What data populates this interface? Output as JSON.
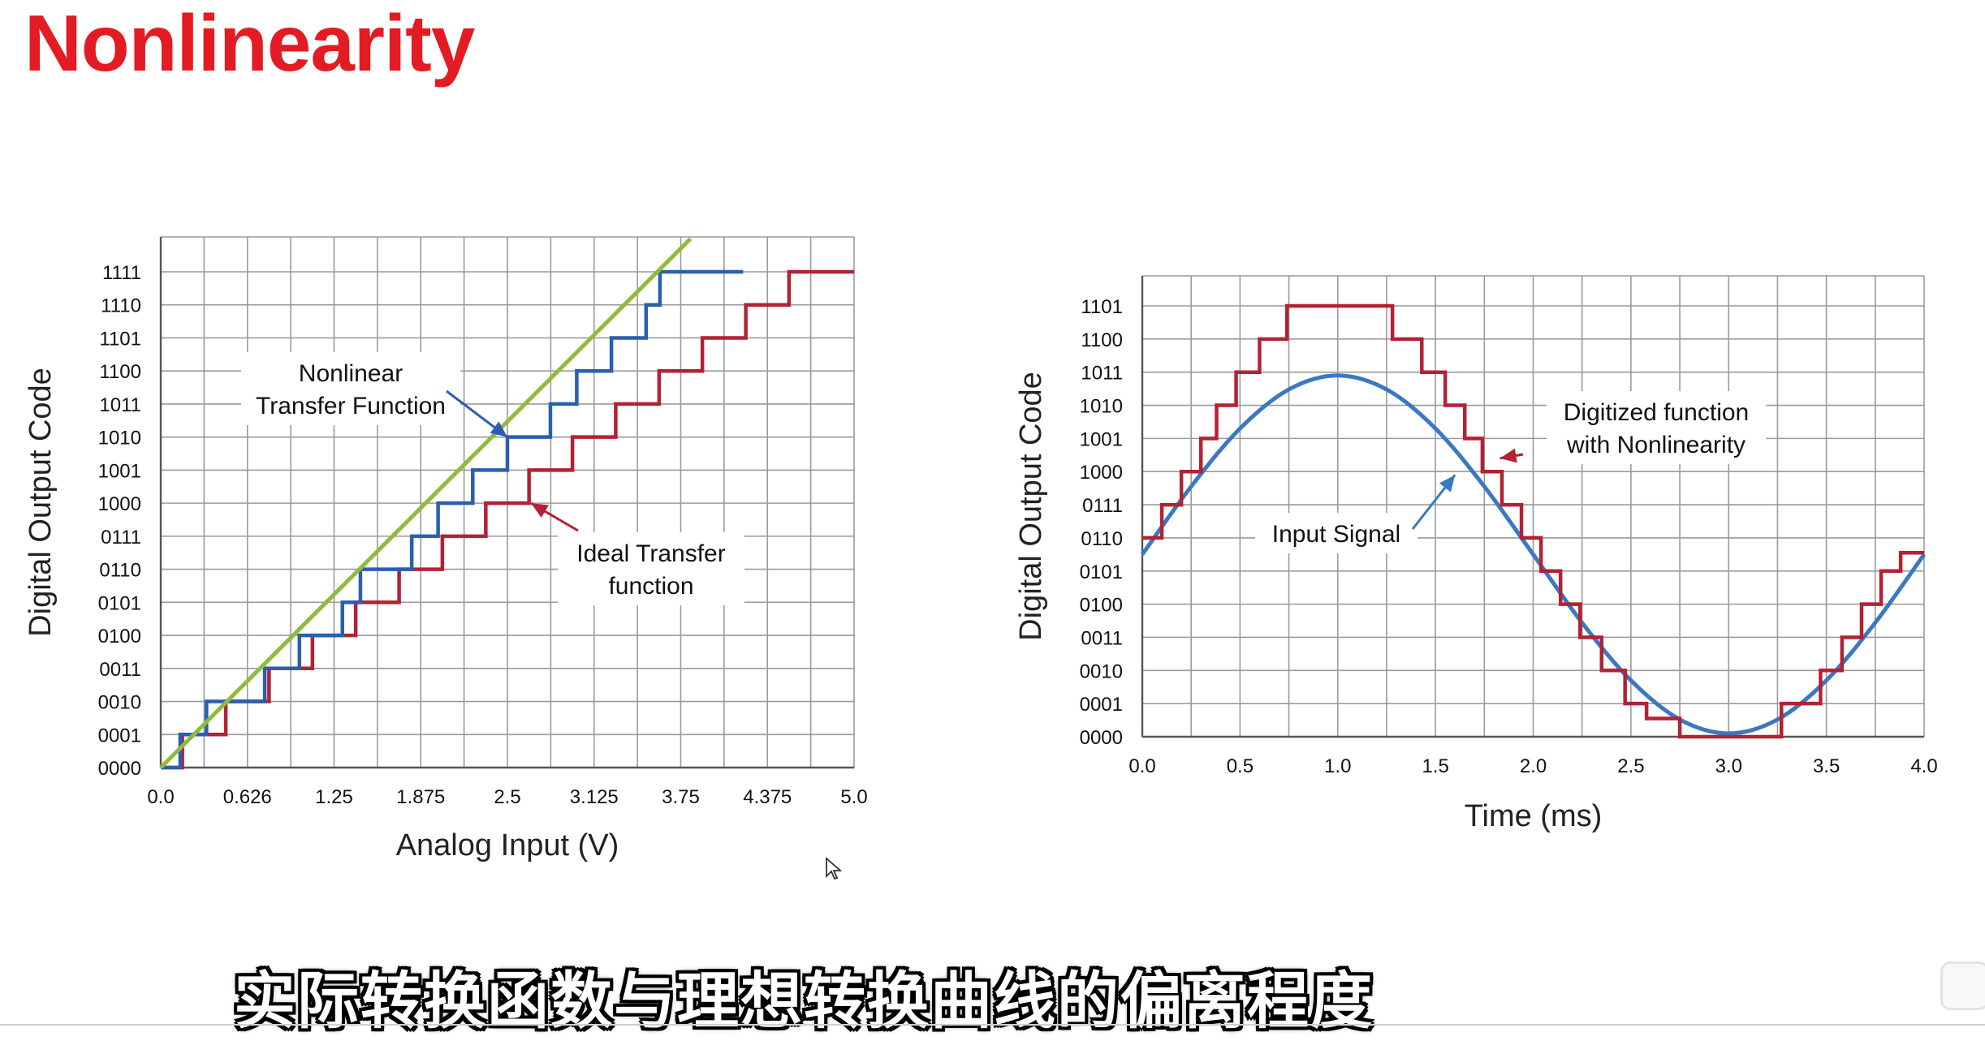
{
  "slide": {
    "title": "Nonlinearity",
    "subtitle": "实际转换函数与理想转换曲线的偏离程度"
  },
  "icons": {
    "cursor": "mouse-pointer-icon",
    "player": "video-player-control-icon"
  },
  "colors": {
    "title": "#e31b23",
    "ideal": "#b22234",
    "nonlinear": "#2b5fae",
    "reference": "#8fbc3a",
    "input_signal": "#3a78c2",
    "digitized": "#b22234",
    "grid": "#9a9a9a"
  },
  "chart_data": [
    {
      "type": "line",
      "xlabel": "Analog Input (V)",
      "ylabel": "Digital Output Code",
      "xlim": [
        0,
        5
      ],
      "ylim": [
        0,
        15
      ],
      "x_ticks": [
        "0.0",
        "0.626",
        "1.25",
        "1.875",
        "2.5",
        "3.125",
        "3.75",
        "4.375",
        "5.0"
      ],
      "y_ticks": [
        "0000",
        "0001",
        "0010",
        "0011",
        "0100",
        "0101",
        "0110",
        "0111",
        "1000",
        "1001",
        "1010",
        "1011",
        "1100",
        "1101",
        "1110",
        "1111"
      ],
      "grid": true,
      "annotations": [
        {
          "text": [
            "Nonlinear",
            "Transfer Function"
          ],
          "points_to": [
            2.5,
            10
          ]
        },
        {
          "text": [
            "Ideal Transfer",
            "function"
          ],
          "points_to": [
            2.67,
            8
          ]
        }
      ],
      "series": [
        {
          "style": "step",
          "color": "#b22234",
          "steps": [
            {
              "x0": 0.0,
              "x1": 0.156,
              "y": 0
            },
            {
              "x0": 0.156,
              "x1": 0.469,
              "y": 1
            },
            {
              "x0": 0.469,
              "x1": 0.781,
              "y": 2
            },
            {
              "x0": 0.781,
              "x1": 1.094,
              "y": 3
            },
            {
              "x0": 1.094,
              "x1": 1.406,
              "y": 4
            },
            {
              "x0": 1.406,
              "x1": 1.719,
              "y": 5
            },
            {
              "x0": 1.719,
              "x1": 2.031,
              "y": 6
            },
            {
              "x0": 2.031,
              "x1": 2.344,
              "y": 7
            },
            {
              "x0": 2.344,
              "x1": 2.656,
              "y": 8
            },
            {
              "x0": 2.656,
              "x1": 2.969,
              "y": 9
            },
            {
              "x0": 2.969,
              "x1": 3.281,
              "y": 10
            },
            {
              "x0": 3.281,
              "x1": 3.594,
              "y": 11
            },
            {
              "x0": 3.594,
              "x1": 3.906,
              "y": 12
            },
            {
              "x0": 3.906,
              "x1": 4.219,
              "y": 13
            },
            {
              "x0": 4.219,
              "x1": 4.531,
              "y": 14
            },
            {
              "x0": 4.531,
              "x1": 5.0,
              "y": 15
            }
          ]
        },
        {
          "style": "step",
          "color": "#2b5fae",
          "steps": [
            {
              "x0": 0.0,
              "x1": 0.14,
              "y": 0
            },
            {
              "x0": 0.14,
              "x1": 0.33,
              "y": 1
            },
            {
              "x0": 0.33,
              "x1": 0.75,
              "y": 2
            },
            {
              "x0": 0.75,
              "x1": 1.0,
              "y": 3
            },
            {
              "x0": 1.0,
              "x1": 1.31,
              "y": 4
            },
            {
              "x0": 1.31,
              "x1": 1.44,
              "y": 5
            },
            {
              "x0": 1.44,
              "x1": 1.81,
              "y": 6
            },
            {
              "x0": 1.81,
              "x1": 2.0,
              "y": 7
            },
            {
              "x0": 2.0,
              "x1": 2.25,
              "y": 8
            },
            {
              "x0": 2.25,
              "x1": 2.5,
              "y": 9
            },
            {
              "x0": 2.5,
              "x1": 2.81,
              "y": 10
            },
            {
              "x0": 2.81,
              "x1": 3.0,
              "y": 11
            },
            {
              "x0": 3.0,
              "x1": 3.25,
              "y": 12
            },
            {
              "x0": 3.25,
              "x1": 3.5,
              "y": 13
            },
            {
              "x0": 3.5,
              "x1": 3.6,
              "y": 14
            },
            {
              "x0": 3.6,
              "x1": 4.2,
              "y": 15
            }
          ]
        },
        {
          "style": "line",
          "color": "#8fbc3a",
          "x": [
            0.0,
            3.82
          ],
          "y": [
            0,
            16
          ]
        }
      ]
    },
    {
      "type": "line",
      "xlabel": "Time (ms)",
      "ylabel": "Digital Output Code",
      "xlim": [
        0,
        4
      ],
      "ylim": [
        0,
        13
      ],
      "x_ticks": [
        "0.0",
        "0.5",
        "1.0",
        "1.5",
        "2.0",
        "2.5",
        "3.0",
        "3.5",
        "4.0"
      ],
      "y_ticks": [
        "0000",
        "0001",
        "0010",
        "0011",
        "0100",
        "0101",
        "0110",
        "0111",
        "1000",
        "1001",
        "1010",
        "1011",
        "1100",
        "1101"
      ],
      "grid": true,
      "annotations": [
        {
          "text": [
            "Digitized function",
            "with Nonlinearity"
          ],
          "points_to": [
            1.83,
            8.4
          ]
        },
        {
          "text": [
            "Input Signal"
          ],
          "points_to": [
            1.6,
            7.9
          ]
        }
      ],
      "series": [
        {
          "style": "line",
          "color": "#3a78c2",
          "x": [
            0.0,
            0.25,
            0.5,
            0.75,
            1.0,
            1.25,
            1.5,
            1.75,
            2.0,
            2.25,
            2.5,
            2.75,
            3.0,
            3.25,
            3.5,
            3.75,
            4.0
          ],
          "y": [
            5.5,
            7.55,
            9.3,
            10.48,
            10.9,
            10.48,
            9.3,
            7.55,
            5.5,
            3.44,
            1.7,
            0.52,
            0.1,
            0.52,
            1.7,
            3.44,
            5.5
          ]
        },
        {
          "style": "step",
          "color": "#b22234",
          "steps": [
            {
              "x0": 0.0,
              "x1": 0.1,
              "y": 6
            },
            {
              "x0": 0.1,
              "x1": 0.2,
              "y": 7
            },
            {
              "x0": 0.2,
              "x1": 0.3,
              "y": 8
            },
            {
              "x0": 0.3,
              "x1": 0.38,
              "y": 9
            },
            {
              "x0": 0.38,
              "x1": 0.48,
              "y": 10
            },
            {
              "x0": 0.48,
              "x1": 0.6,
              "y": 11
            },
            {
              "x0": 0.6,
              "x1": 0.74,
              "y": 12
            },
            {
              "x0": 0.74,
              "x1": 1.28,
              "y": 13
            },
            {
              "x0": 1.28,
              "x1": 1.43,
              "y": 12
            },
            {
              "x0": 1.43,
              "x1": 1.55,
              "y": 11
            },
            {
              "x0": 1.55,
              "x1": 1.65,
              "y": 10
            },
            {
              "x0": 1.65,
              "x1": 1.74,
              "y": 9
            },
            {
              "x0": 1.74,
              "x1": 1.84,
              "y": 8
            },
            {
              "x0": 1.84,
              "x1": 1.94,
              "y": 7
            },
            {
              "x0": 1.94,
              "x1": 2.04,
              "y": 6
            },
            {
              "x0": 2.04,
              "x1": 2.14,
              "y": 5
            },
            {
              "x0": 2.14,
              "x1": 2.24,
              "y": 4
            },
            {
              "x0": 2.24,
              "x1": 2.35,
              "y": 3
            },
            {
              "x0": 2.35,
              "x1": 2.47,
              "y": 2
            },
            {
              "x0": 2.47,
              "x1": 2.58,
              "y": 1
            },
            {
              "x0": 2.58,
              "x1": 2.75,
              "y": 0.55
            },
            {
              "x0": 2.75,
              "x1": 3.27,
              "y": 0
            },
            {
              "x0": 3.27,
              "x1": 3.47,
              "y": 1
            },
            {
              "x0": 3.47,
              "x1": 3.58,
              "y": 2
            },
            {
              "x0": 3.58,
              "x1": 3.68,
              "y": 3
            },
            {
              "x0": 3.68,
              "x1": 3.78,
              "y": 4
            },
            {
              "x0": 3.78,
              "x1": 3.88,
              "y": 5
            },
            {
              "x0": 3.88,
              "x1": 4.0,
              "y": 5.55
            }
          ]
        }
      ]
    }
  ]
}
